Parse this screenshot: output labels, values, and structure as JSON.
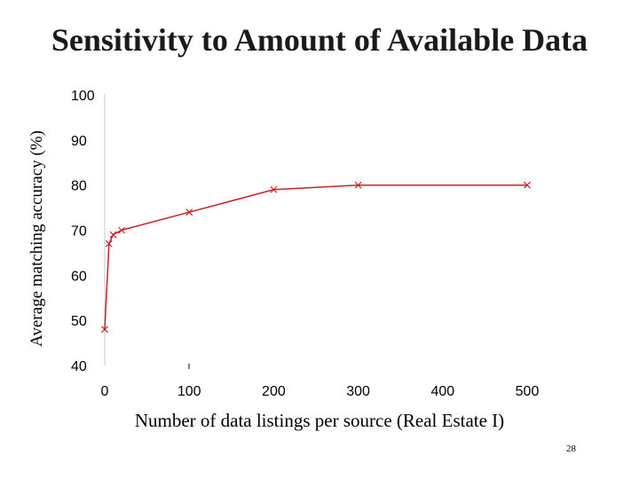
{
  "chart_data": {
    "type": "line",
    "title": "Sensitivity to Amount of Available Data",
    "xlabel": "Number of data listings per source (Real Estate I)",
    "ylabel": "Average matching accuracy (%)",
    "xlim": [
      0,
      500
    ],
    "ylim": [
      40,
      100
    ],
    "x_ticks": [
      "0",
      "100",
      "200",
      "300",
      "400",
      "500"
    ],
    "y_ticks": [
      "100",
      "90",
      "80",
      "70",
      "60",
      "50",
      "40"
    ],
    "grid": false,
    "legend": "none",
    "series": [
      {
        "name": "Average matching accuracy",
        "marker": "x",
        "color": "#cc2222",
        "x": [
          0,
          5,
          10,
          20,
          100,
          200,
          300,
          500
        ],
        "y": [
          48,
          67,
          69,
          70,
          74,
          79,
          80,
          80
        ]
      }
    ]
  },
  "page_number": "28"
}
